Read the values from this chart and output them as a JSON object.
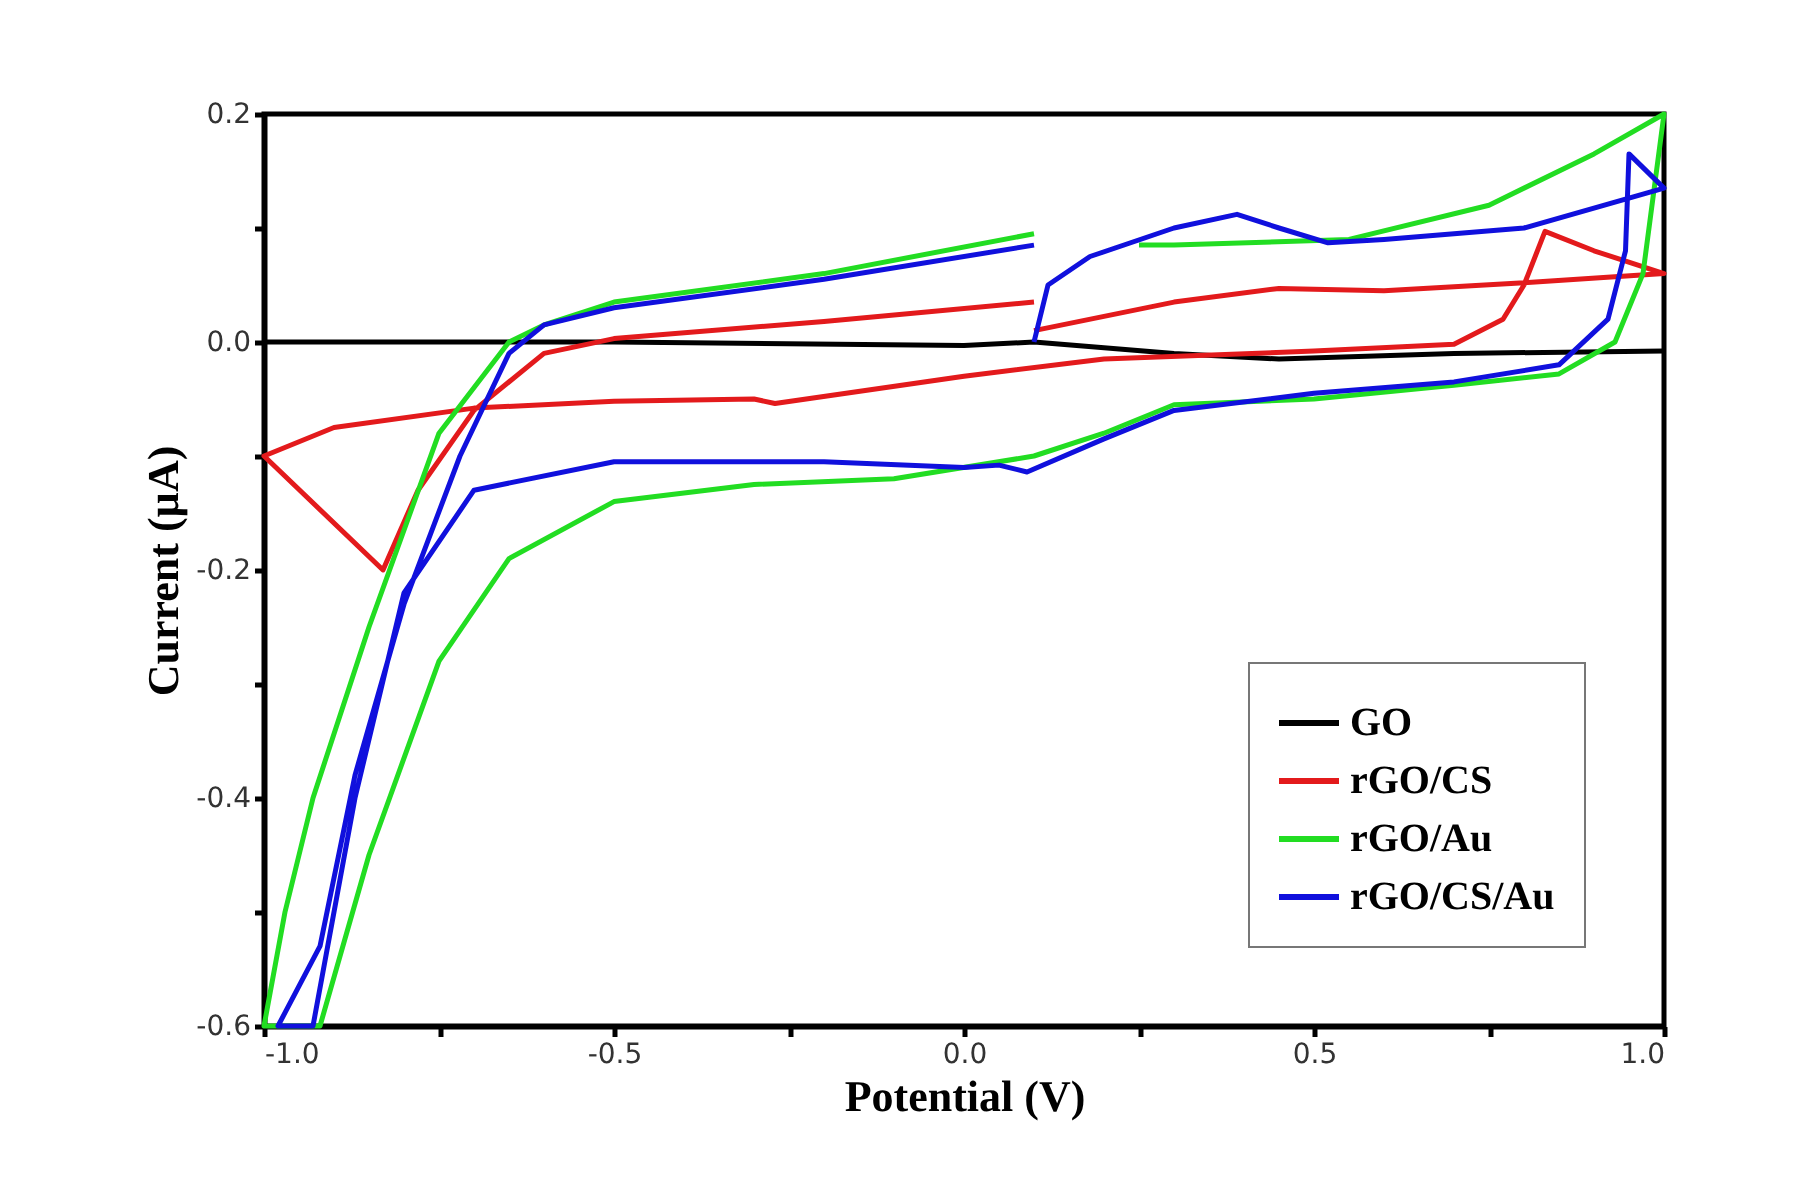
{
  "chart_data": {
    "type": "line",
    "xlabel": "Potential (V)",
    "ylabel": "Current (µA)",
    "xlim": [
      -1.0,
      1.0
    ],
    "ylim": [
      -0.6,
      0.2
    ],
    "xticks": [
      {
        "value": -1.0,
        "label": "-1.0"
      },
      {
        "value": -0.75,
        "label": null
      },
      {
        "value": -0.5,
        "label": "-0.5"
      },
      {
        "value": -0.25,
        "label": null
      },
      {
        "value": 0,
        "label": "0.0"
      },
      {
        "value": 0.25,
        "label": null
      },
      {
        "value": 0.5,
        "label": "0.5"
      },
      {
        "value": 0.75,
        "label": null
      },
      {
        "value": 1.0,
        "label": "1.0"
      }
    ],
    "yticks": [
      {
        "value": -0.6,
        "label": "-0.6"
      },
      {
        "value": -0.5,
        "label": null
      },
      {
        "value": -0.4,
        "label": "-0.4"
      },
      {
        "value": -0.3,
        "label": null
      },
      {
        "value": -0.2,
        "label": "-0.2"
      },
      {
        "value": -0.1,
        "label": null
      },
      {
        "value": 0,
        "label": "0.0"
      },
      {
        "value": 0.1,
        "label": null
      },
      {
        "value": 0.2,
        "label": "0.2"
      }
    ],
    "grid": false,
    "legend": "bottom right",
    "marker": "none",
    "line_style": "solid",
    "series": [
      {
        "name": "GO",
        "color": "#000000",
        "x": [
          -1.0,
          -0.5,
          0.0,
          0.1,
          0.3,
          0.45,
          0.7,
          1.0
        ],
        "values": [
          0.0,
          0.0,
          -0.003,
          0.0,
          -0.01,
          -0.015,
          -0.01,
          -0.008
        ]
      },
      {
        "name": "rGO/CS",
        "color": "#e31a1c",
        "x": [
          0.1,
          -0.2,
          -0.5,
          -0.6,
          -0.7,
          -0.78,
          -0.83,
          -1.0,
          -0.9,
          -0.7,
          -0.5,
          -0.3,
          -0.27,
          0.0,
          0.2,
          0.5,
          0.7,
          0.77,
          0.8,
          0.83,
          0.9,
          1.0,
          0.8,
          0.6,
          0.45,
          0.3,
          0.1
        ],
        "values": [
          0.035,
          0.018,
          0.003,
          -0.01,
          -0.06,
          -0.13,
          -0.2,
          -0.1,
          -0.075,
          -0.058,
          -0.052,
          -0.05,
          -0.054,
          -0.03,
          -0.015,
          -0.008,
          -0.002,
          0.02,
          0.05,
          0.097,
          0.08,
          0.06,
          0.052,
          0.045,
          0.047,
          0.035,
          0.01
        ]
      },
      {
        "name": "rGO/Au",
        "color": "#22dd22",
        "x": [
          0.1,
          -0.2,
          -0.5,
          -0.6,
          -0.65,
          -0.75,
          -0.85,
          -0.93,
          -0.97,
          -1.0,
          -0.92,
          -0.85,
          -0.75,
          -0.65,
          -0.5,
          -0.3,
          -0.1,
          0.1,
          0.2,
          0.3,
          0.5,
          0.7,
          0.85,
          0.93,
          0.97,
          1.0,
          0.9,
          0.75,
          0.55,
          0.3,
          0.25
        ],
        "values": [
          0.095,
          0.06,
          0.035,
          0.015,
          0.0,
          -0.08,
          -0.25,
          -0.4,
          -0.5,
          -0.6,
          -0.6,
          -0.45,
          -0.28,
          -0.19,
          -0.14,
          -0.125,
          -0.12,
          -0.1,
          -0.08,
          -0.055,
          -0.05,
          -0.038,
          -0.028,
          0.0,
          0.06,
          0.2,
          0.165,
          0.12,
          0.09,
          0.085,
          0.085
        ]
      },
      {
        "name": "rGO/CS/Au",
        "color": "#1010dd",
        "x": [
          0.1,
          -0.2,
          -0.5,
          -0.6,
          -0.65,
          -0.72,
          -0.8,
          -0.87,
          -0.92,
          -0.98,
          -0.93,
          -0.87,
          -0.8,
          -0.7,
          -0.5,
          -0.2,
          0.0,
          0.05,
          0.09,
          0.2,
          0.3,
          0.5,
          0.7,
          0.85,
          0.92,
          0.945,
          0.95,
          1.0,
          0.8,
          0.6,
          0.52,
          0.45,
          0.39,
          0.3,
          0.18,
          0.12,
          0.1
        ],
        "values": [
          0.085,
          0.055,
          0.03,
          0.015,
          -0.01,
          -0.1,
          -0.23,
          -0.38,
          -0.53,
          -0.6,
          -0.6,
          -0.4,
          -0.22,
          -0.13,
          -0.105,
          -0.105,
          -0.11,
          -0.108,
          -0.114,
          -0.085,
          -0.06,
          -0.045,
          -0.035,
          -0.02,
          0.02,
          0.08,
          0.165,
          0.135,
          0.1,
          0.09,
          0.087,
          0.1,
          0.112,
          0.1,
          0.075,
          0.05,
          0.0
        ]
      }
    ]
  }
}
